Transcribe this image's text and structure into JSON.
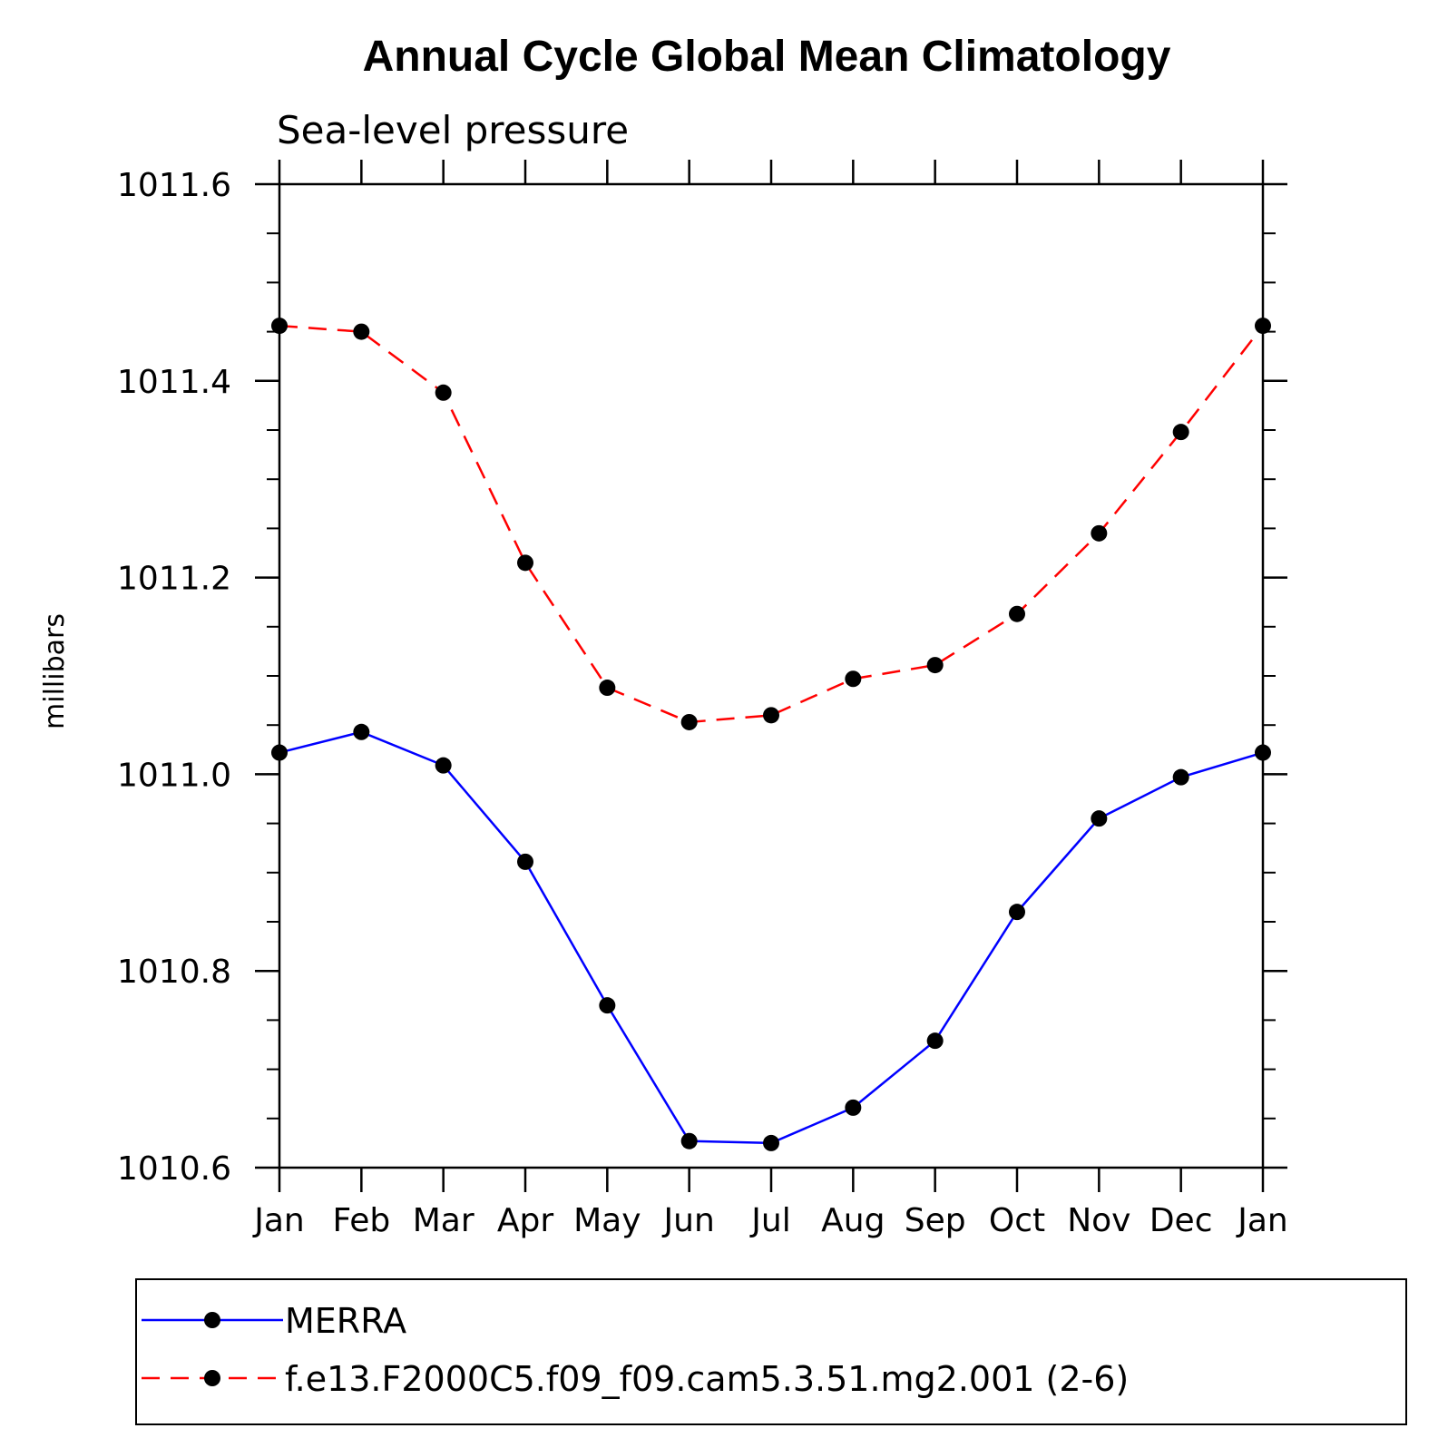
{
  "chart_data": {
    "type": "line",
    "title": "Annual Cycle Global Mean Climatology",
    "subtitle": "Sea-level pressure",
    "xlabel": "",
    "ylabel": "millibars",
    "categories": [
      "Jan",
      "Feb",
      "Mar",
      "Apr",
      "May",
      "Jun",
      "Jul",
      "Aug",
      "Sep",
      "Oct",
      "Nov",
      "Dec",
      "Jan"
    ],
    "ylim": [
      1010.6,
      1011.6
    ],
    "yticks": [
      "1010.6",
      "1010.8",
      "1011.0",
      "1011.2",
      "1011.4",
      "1011.6"
    ],
    "ytick_values": [
      1010.6,
      1010.8,
      1011.0,
      1011.2,
      1011.4,
      1011.6
    ],
    "grid": false,
    "legend_position": "bottom",
    "series": [
      {
        "name": "MERRA",
        "color": "#0000ff",
        "line_style": "solid",
        "marker": "filled-circle",
        "values": [
          1011.022,
          1011.043,
          1011.009,
          1010.911,
          1010.765,
          1010.627,
          1010.625,
          1010.661,
          1010.729,
          1010.86,
          1010.955,
          1010.997,
          1011.022
        ]
      },
      {
        "name": "f.e13.F2000C5.f09_f09.cam5.3.51.mg2.001 (2-6)",
        "color": "#ff0000",
        "line_style": "dashed",
        "marker": "filled-circle",
        "values": [
          1011.456,
          1011.45,
          1011.388,
          1011.215,
          1011.088,
          1011.053,
          1011.06,
          1011.097,
          1011.111,
          1011.163,
          1011.245,
          1011.348,
          1011.456
        ]
      }
    ]
  }
}
